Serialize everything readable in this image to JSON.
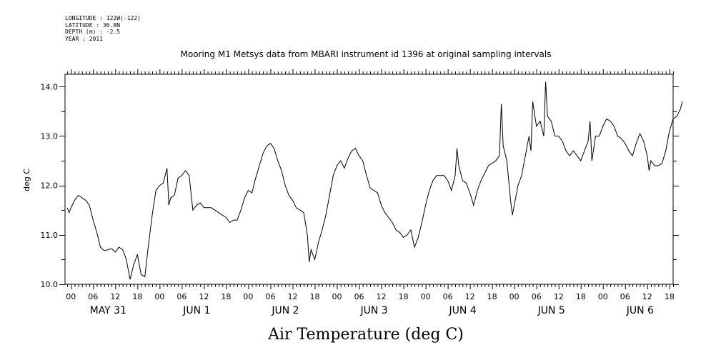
{
  "header": {
    "longitude": "LONGITUDE : 122W(-122)",
    "latitude": "LATITUDE : 36.8N",
    "depth": "DEPTH (m) : -2.5",
    "year": "YEAR : 2011"
  },
  "chart_data": {
    "type": "line",
    "title": "Mooring M1 Metsys data from MBARI instrument id 1396 at original sampling intervals",
    "xlabel": "Air Temperature (deg C)",
    "ylabel": "deg C",
    "ylim": [
      10.0,
      14.25
    ],
    "y_ticks": [
      "10.0",
      "11.0",
      "12.0",
      "13.0",
      "14.0"
    ],
    "x_unit": "hours since 2011-05-30 00:00",
    "xlim": [
      22.4,
      187.0
    ],
    "hour_tick_labels": [
      "00",
      "06",
      "12",
      "18",
      "00",
      "06",
      "12",
      "18",
      "00",
      "06",
      "12",
      "18",
      "00",
      "06",
      "12",
      "18",
      "00",
      "06",
      "12",
      "18",
      "00",
      "06",
      "12",
      "18",
      "00",
      "06",
      "12",
      "18"
    ],
    "day_labels": [
      "MAY 31",
      "JUN  1",
      "JUN  2",
      "JUN  3",
      "JUN  4",
      "JUN  5",
      "JUN  6"
    ],
    "grid": false,
    "series": [
      {
        "values": [
          [
            23.0,
            11.55
          ],
          [
            23.5,
            11.45
          ],
          [
            24,
            11.55
          ],
          [
            25,
            11.7
          ],
          [
            26,
            11.8
          ],
          [
            27,
            11.75
          ],
          [
            28,
            11.7
          ],
          [
            29,
            11.6
          ],
          [
            30,
            11.3
          ],
          [
            31,
            11.05
          ],
          [
            32,
            10.75
          ],
          [
            33,
            10.68
          ],
          [
            34,
            10.7
          ],
          [
            35,
            10.72
          ],
          [
            36,
            10.65
          ],
          [
            37,
            10.75
          ],
          [
            38,
            10.7
          ],
          [
            39,
            10.5
          ],
          [
            40,
            10.1
          ],
          [
            41,
            10.4
          ],
          [
            42,
            10.6
          ],
          [
            43,
            10.2
          ],
          [
            44,
            10.15
          ],
          [
            45,
            10.8
          ],
          [
            46,
            11.4
          ],
          [
            47,
            11.9
          ],
          [
            48,
            12.0
          ],
          [
            49,
            12.05
          ],
          [
            50,
            12.35
          ],
          [
            50.5,
            11.6
          ],
          [
            51,
            11.75
          ],
          [
            52,
            11.8
          ],
          [
            53,
            12.15
          ],
          [
            54,
            12.2
          ],
          [
            55,
            12.3
          ],
          [
            56,
            12.2
          ],
          [
            57,
            11.5
          ],
          [
            58,
            11.6
          ],
          [
            59,
            11.65
          ],
          [
            60,
            11.55
          ],
          [
            62,
            11.55
          ],
          [
            64,
            11.45
          ],
          [
            66,
            11.35
          ],
          [
            67,
            11.25
          ],
          [
            68,
            11.3
          ],
          [
            69,
            11.3
          ],
          [
            70,
            11.5
          ],
          [
            71,
            11.75
          ],
          [
            72,
            11.9
          ],
          [
            73,
            11.85
          ],
          [
            74,
            12.15
          ],
          [
            75,
            12.4
          ],
          [
            76,
            12.65
          ],
          [
            77,
            12.8
          ],
          [
            78,
            12.85
          ],
          [
            79,
            12.75
          ],
          [
            80,
            12.5
          ],
          [
            81,
            12.3
          ],
          [
            82,
            12.0
          ],
          [
            83,
            11.8
          ],
          [
            84,
            11.7
          ],
          [
            85,
            11.55
          ],
          [
            86,
            11.5
          ],
          [
            87,
            11.45
          ],
          [
            88,
            11.0
          ],
          [
            88.5,
            10.45
          ],
          [
            89,
            10.7
          ],
          [
            90,
            10.5
          ],
          [
            91,
            10.85
          ],
          [
            92,
            11.1
          ],
          [
            93,
            11.4
          ],
          [
            94,
            11.8
          ],
          [
            95,
            12.2
          ],
          [
            96,
            12.4
          ],
          [
            97,
            12.5
          ],
          [
            98,
            12.35
          ],
          [
            99,
            12.55
          ],
          [
            100,
            12.7
          ],
          [
            101,
            12.75
          ],
          [
            102,
            12.6
          ],
          [
            103,
            12.5
          ],
          [
            104,
            12.2
          ],
          [
            105,
            11.95
          ],
          [
            106,
            11.9
          ],
          [
            107,
            11.85
          ],
          [
            108,
            11.6
          ],
          [
            109,
            11.45
          ],
          [
            110,
            11.35
          ],
          [
            111,
            11.25
          ],
          [
            112,
            11.1
          ],
          [
            113,
            11.05
          ],
          [
            114,
            10.95
          ],
          [
            115,
            11.0
          ],
          [
            116,
            11.1
          ],
          [
            117,
            10.75
          ],
          [
            118,
            10.95
          ],
          [
            119,
            11.25
          ],
          [
            120,
            11.6
          ],
          [
            121,
            11.9
          ],
          [
            122,
            12.1
          ],
          [
            123,
            12.2
          ],
          [
            124,
            12.2
          ],
          [
            125,
            12.2
          ],
          [
            126,
            12.1
          ],
          [
            127,
            11.9
          ],
          [
            128,
            12.2
          ],
          [
            128.5,
            12.75
          ],
          [
            129,
            12.4
          ],
          [
            130,
            12.1
          ],
          [
            131,
            12.05
          ],
          [
            132,
            11.85
          ],
          [
            133,
            11.6
          ],
          [
            134,
            11.9
          ],
          [
            135,
            12.1
          ],
          [
            136,
            12.25
          ],
          [
            137,
            12.4
          ],
          [
            138,
            12.45
          ],
          [
            139,
            12.5
          ],
          [
            140,
            12.6
          ],
          [
            140.5,
            13.65
          ],
          [
            141,
            12.8
          ],
          [
            142,
            12.5
          ],
          [
            143,
            11.7
          ],
          [
            143.5,
            11.4
          ],
          [
            144,
            11.6
          ],
          [
            145,
            12.0
          ],
          [
            146,
            12.2
          ],
          [
            147,
            12.6
          ],
          [
            148,
            13.0
          ],
          [
            148.5,
            12.7
          ],
          [
            149,
            13.7
          ],
          [
            150,
            13.2
          ],
          [
            151,
            13.3
          ],
          [
            152,
            13.0
          ],
          [
            152.5,
            14.1
          ],
          [
            153,
            13.4
          ],
          [
            154,
            13.3
          ],
          [
            155,
            13.0
          ],
          [
            156,
            13.0
          ],
          [
            157,
            12.9
          ],
          [
            158,
            12.7
          ],
          [
            159,
            12.6
          ],
          [
            160,
            12.7
          ],
          [
            161,
            12.6
          ],
          [
            162,
            12.5
          ],
          [
            163,
            12.7
          ],
          [
            164,
            12.9
          ],
          [
            164.5,
            13.3
          ],
          [
            165,
            12.5
          ],
          [
            166,
            13.0
          ],
          [
            167,
            13.0
          ],
          [
            168,
            13.2
          ],
          [
            169,
            13.35
          ],
          [
            170,
            13.3
          ],
          [
            171,
            13.2
          ],
          [
            172,
            13.0
          ],
          [
            173,
            12.95
          ],
          [
            174,
            12.85
          ],
          [
            175,
            12.7
          ],
          [
            176,
            12.6
          ],
          [
            177,
            12.85
          ],
          [
            178,
            13.05
          ],
          [
            179,
            12.9
          ],
          [
            180,
            12.6
          ],
          [
            180.5,
            12.3
          ],
          [
            181,
            12.5
          ],
          [
            182,
            12.4
          ],
          [
            183,
            12.4
          ],
          [
            184,
            12.45
          ],
          [
            185,
            12.7
          ],
          [
            186,
            13.1
          ],
          [
            187,
            13.35
          ],
          [
            188,
            13.4
          ],
          [
            189,
            13.55
          ],
          [
            189.5,
            13.7
          ]
        ]
      }
    ]
  }
}
